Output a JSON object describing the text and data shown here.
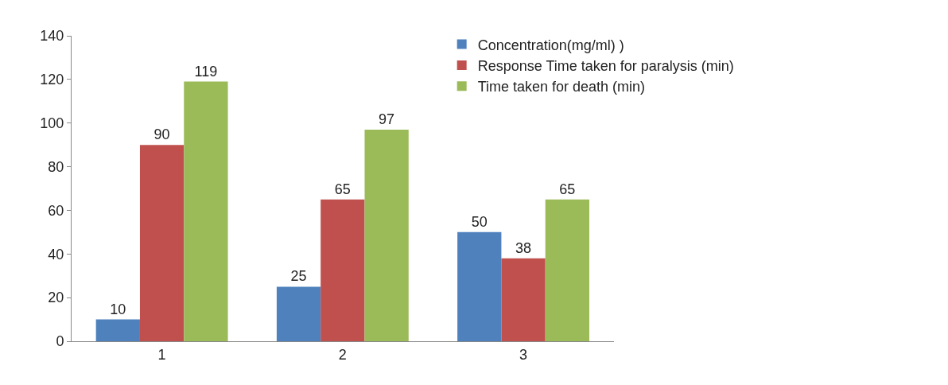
{
  "chart_data": {
    "type": "bar",
    "categories": [
      "1",
      "2",
      "3"
    ],
    "series": [
      {
        "name": "Concentration(mg/ml) )",
        "color": "#4f81bd",
        "values": [
          10,
          25,
          50
        ]
      },
      {
        "name": "Response Time taken for paralysis (min)",
        "color": "#c0504d",
        "values": [
          90,
          65,
          38
        ]
      },
      {
        "name": "Time taken for death (min)",
        "color": "#9bbb59",
        "values": [
          119,
          97,
          65
        ]
      }
    ],
    "ylim": [
      0,
      140
    ],
    "yticks": [
      0,
      20,
      40,
      60,
      80,
      100,
      120,
      140
    ],
    "data_labels": true,
    "legend": "top right"
  }
}
